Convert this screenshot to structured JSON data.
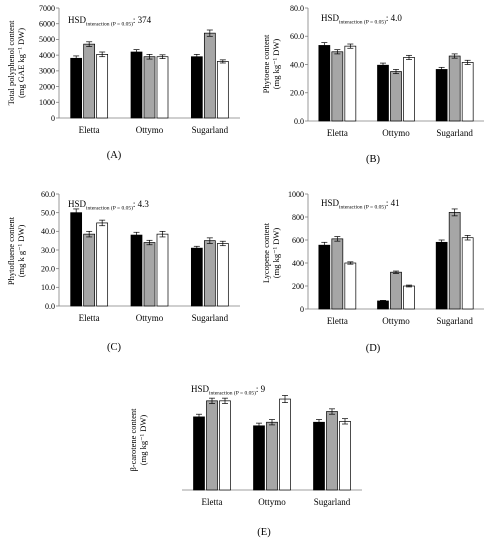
{
  "colors": {
    "black": "#000000",
    "gray": "#a6a6a6",
    "white": "#ffffff",
    "axis": "#7f7f7f"
  },
  "chart_data": [
    {
      "type": "bar",
      "panel_label": "(A)",
      "ylabel": "Total polyphenol content (mg GAE kg⁻¹ DW)",
      "hsd": {
        "prefix": "HSD",
        "sub": "interaction (P = 0.05)",
        "value": ": 374"
      },
      "ylim": [
        0,
        7000
      ],
      "yticks": [
        "0",
        "1000",
        "2000",
        "3000",
        "4000",
        "5000",
        "6000",
        "7000"
      ],
      "categories": [
        "Eletta",
        "Ottymo",
        "Sugarland"
      ],
      "series": [
        {
          "values": [
            3800,
            4200,
            3900
          ],
          "errors": [
            150,
            150,
            150
          ]
        },
        {
          "values": [
            4700,
            3900,
            5400
          ],
          "errors": [
            150,
            150,
            200
          ]
        },
        {
          "values": [
            4050,
            3900,
            3600
          ],
          "errors": [
            150,
            120,
            100
          ]
        }
      ]
    },
    {
      "type": "bar",
      "panel_label": "(B)",
      "ylabel": "Phytoene content (mg kg⁻¹ DW)",
      "hsd": {
        "prefix": "HSD",
        "sub": "interaction (P = 0.05)",
        "value": ": 4.0"
      },
      "ylim": [
        0,
        80
      ],
      "yticks": [
        "0.0",
        "20.0",
        "40.0",
        "60.0",
        "80.0"
      ],
      "categories": [
        "Eletta",
        "Ottymo",
        "Sugarland"
      ],
      "series": [
        {
          "values": [
            53.5,
            39.5,
            36.5
          ],
          "errors": [
            2.0,
            1.5,
            1.5
          ]
        },
        {
          "values": [
            49.0,
            35.0,
            46.0
          ],
          "errors": [
            1.5,
            1.5,
            1.5
          ]
        },
        {
          "values": [
            53.0,
            45.0,
            41.5
          ],
          "errors": [
            1.5,
            1.5,
            1.5
          ]
        }
      ]
    },
    {
      "type": "bar",
      "panel_label": "(C)",
      "ylabel": "Phytofluene content (mg k g⁻¹ DW)",
      "hsd": {
        "prefix": "HSD",
        "sub": "interaction (P = 0.05)",
        "value": ": 4.3"
      },
      "ylim": [
        0,
        60
      ],
      "yticks": [
        "0.0",
        "10.0",
        "20.0",
        "30.0",
        "40.0",
        "50.0",
        "60.0"
      ],
      "categories": [
        "Eletta",
        "Ottymo",
        "Sugarland"
      ],
      "series": [
        {
          "values": [
            50.0,
            38.0,
            31.0
          ],
          "errors": [
            2.0,
            1.5,
            1.0
          ]
        },
        {
          "values": [
            38.5,
            34.0,
            35.0
          ],
          "errors": [
            1.5,
            1.2,
            1.5
          ]
        },
        {
          "values": [
            44.5,
            38.5,
            33.5
          ],
          "errors": [
            1.5,
            1.5,
            1.2
          ]
        }
      ]
    },
    {
      "type": "bar",
      "panel_label": "(D)",
      "ylabel": "Lycopene content (mg kg⁻¹ DW)",
      "hsd": {
        "prefix": "HSD",
        "sub": "interaction (P = 0.05)",
        "value": ": 41"
      },
      "ylim": [
        0,
        1000
      ],
      "yticks": [
        "0",
        "200",
        "400",
        "600",
        "800",
        "1000"
      ],
      "categories": [
        "Eletta",
        "Ottymo",
        "Sugarland"
      ],
      "series": [
        {
          "values": [
            555,
            70,
            580
          ],
          "errors": [
            25,
            5,
            20
          ]
        },
        {
          "values": [
            610,
            320,
            840
          ],
          "errors": [
            20,
            10,
            30
          ]
        },
        {
          "values": [
            400,
            200,
            620
          ],
          "errors": [
            10,
            8,
            20
          ]
        }
      ]
    },
    {
      "type": "bar",
      "panel_label": "(E)",
      "ylabel": "β-carotene content (mg kg⁻¹ DW)",
      "hsd": {
        "prefix": "HSD",
        "sub": "interaction (P = 0.05)",
        "value": ": 9"
      },
      "ylim": [
        0,
        120
      ],
      "yticks": [],
      "categories": [
        "Eletta",
        "Ottymo",
        "Sugarland"
      ],
      "series": [
        {
          "values": [
            82,
            72,
            76
          ],
          "errors": [
            3,
            3,
            3
          ]
        },
        {
          "values": [
            100,
            76,
            88
          ],
          "errors": [
            3,
            3,
            3
          ]
        },
        {
          "values": [
            100,
            102,
            77
          ],
          "errors": [
            3,
            4,
            3
          ]
        }
      ]
    }
  ]
}
